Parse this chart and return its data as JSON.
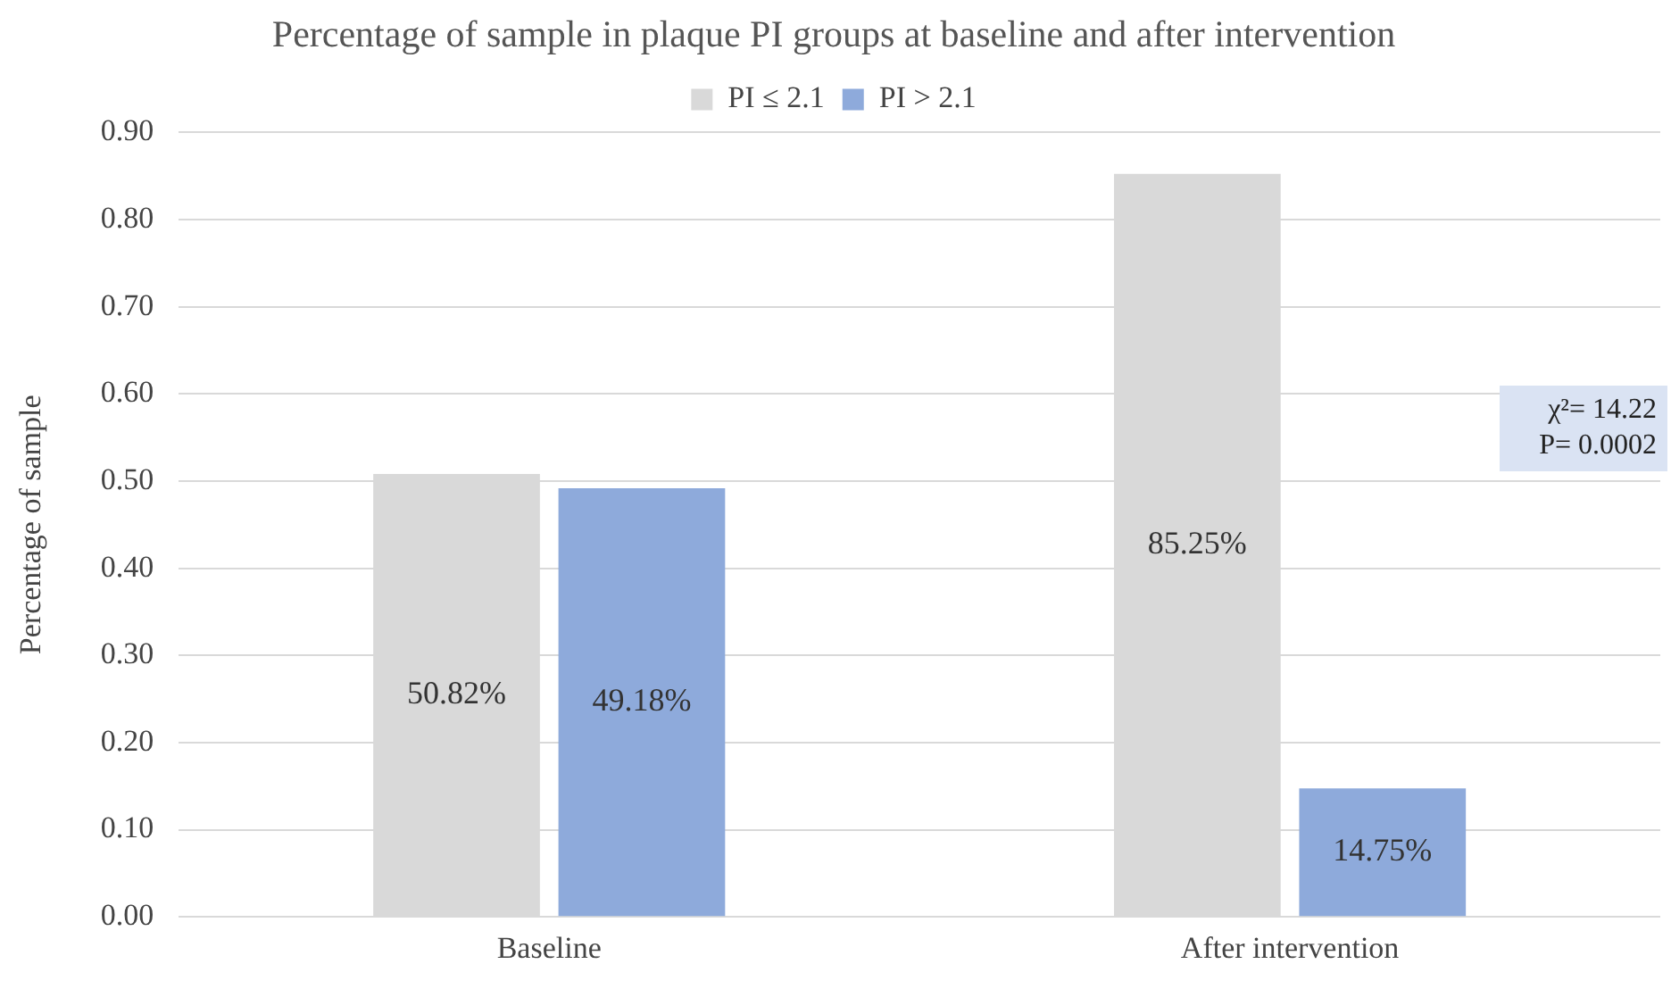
{
  "chart_data": {
    "type": "bar",
    "title": "Percentage of sample in plaque PI groups at baseline and after intervention",
    "ylabel": "Percentage of sample",
    "categories": [
      "Baseline",
      "After intervention"
    ],
    "series": [
      {
        "name": "PI ≤ 2.1",
        "color": "#d9d9d9",
        "values": [
          0.5082,
          0.8525
        ],
        "value_labels": [
          "50.82%",
          "85.25%"
        ]
      },
      {
        "name": "PI > 2.1",
        "color": "#8eaadb",
        "values": [
          0.4918,
          0.1475
        ],
        "value_labels": [
          "49.18%",
          "14.75%"
        ]
      }
    ],
    "ylim": [
      0,
      0.9
    ],
    "yticks": [
      {
        "value": 0,
        "label": "0.00"
      },
      {
        "value": 0.1,
        "label": "0.10"
      },
      {
        "value": 0.2,
        "label": "0.20"
      },
      {
        "value": 0.3,
        "label": "0.30"
      },
      {
        "value": 0.4,
        "label": "0.40"
      },
      {
        "value": 0.5,
        "label": "0.50"
      },
      {
        "value": 0.6,
        "label": "0.60"
      },
      {
        "value": 0.7,
        "label": "0.70"
      },
      {
        "value": 0.8,
        "label": "0.80"
      },
      {
        "value": 0.9,
        "label": "0.90"
      }
    ],
    "grid": "y",
    "legend": "top",
    "annotations": [
      "χ²= 14.22",
      "P= 0.0002"
    ]
  }
}
